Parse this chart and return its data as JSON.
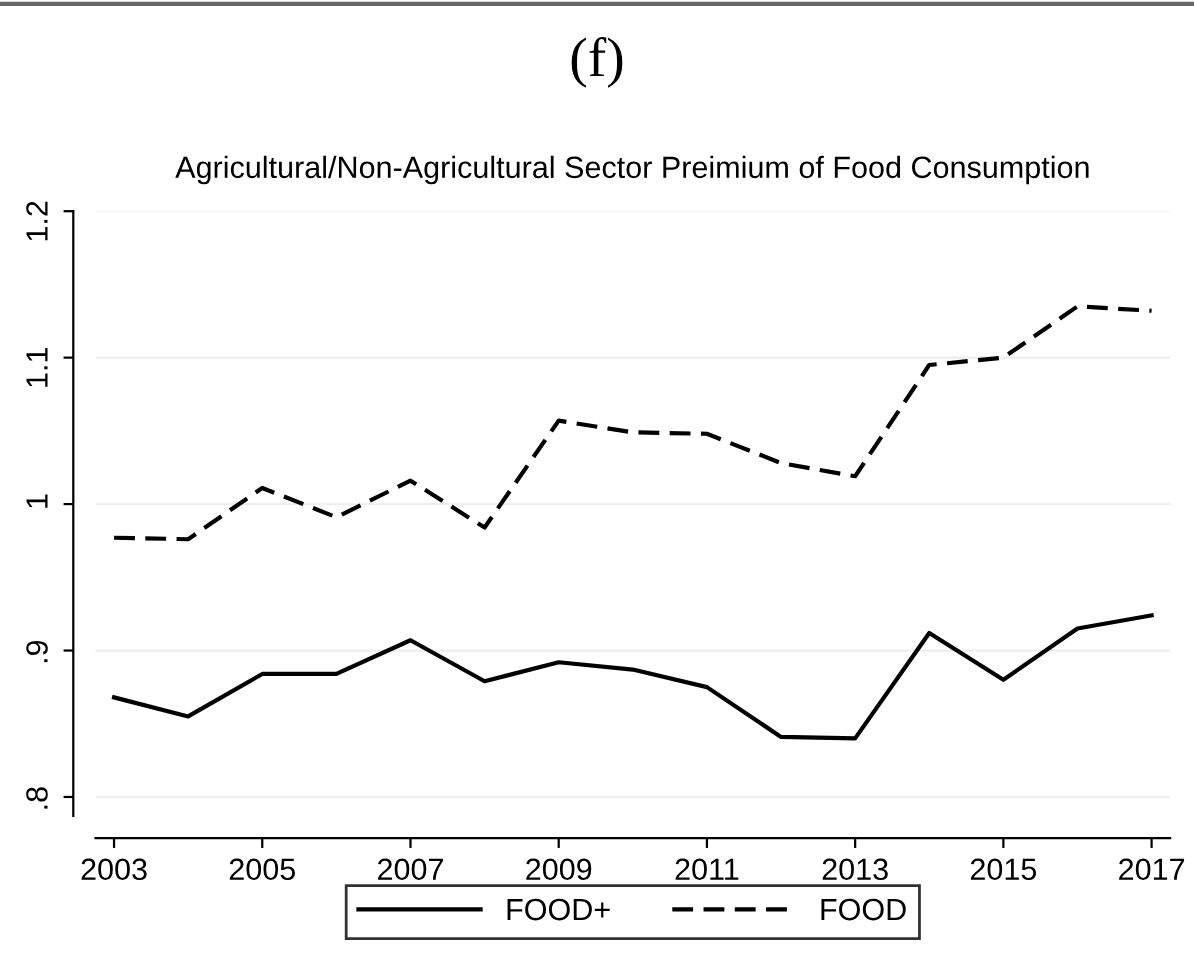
{
  "chart_data": {
    "type": "line",
    "title": "Agricultural/Non-Agricultural Sector Preimium of Food Consumption",
    "annotations": [
      "(f)"
    ],
    "x": [
      2003,
      2004,
      2005,
      2006,
      2007,
      2008,
      2009,
      2010,
      2011,
      2012,
      2013,
      2014,
      2015,
      2016,
      2017
    ],
    "series": [
      {
        "name": "FOOD+",
        "color": "#000000",
        "line_style": "solid",
        "values": [
          0.868,
          0.855,
          0.884,
          0.884,
          0.907,
          0.879,
          0.892,
          0.887,
          0.875,
          0.841,
          0.84,
          0.912,
          0.88,
          0.915,
          0.924
        ]
      },
      {
        "name": "FOOD",
        "color": "#000000",
        "line_style": "dashed",
        "values": [
          0.977,
          0.976,
          1.011,
          0.991,
          1.016,
          0.984,
          1.057,
          1.049,
          1.048,
          1.028,
          1.019,
          1.095,
          1.1,
          1.135,
          1.132
        ]
      }
    ],
    "xlim": [
      2002.75,
      2017.25
    ],
    "xticks": [
      2003,
      2005,
      2007,
      2009,
      2011,
      2013,
      2015,
      2017
    ],
    "ylim": [
      0.787,
      1.2
    ],
    "yticks": [
      {
        "value": 0.8,
        "label": ".8"
      },
      {
        "value": 0.9,
        "label": ".9"
      },
      {
        "value": 1,
        "label": "1"
      },
      {
        "value": 1.1,
        "label": "1.1"
      },
      {
        "value": 1.2,
        "label": "1.2"
      }
    ],
    "grid": "y",
    "legend": "bottom",
    "marker": "none"
  }
}
